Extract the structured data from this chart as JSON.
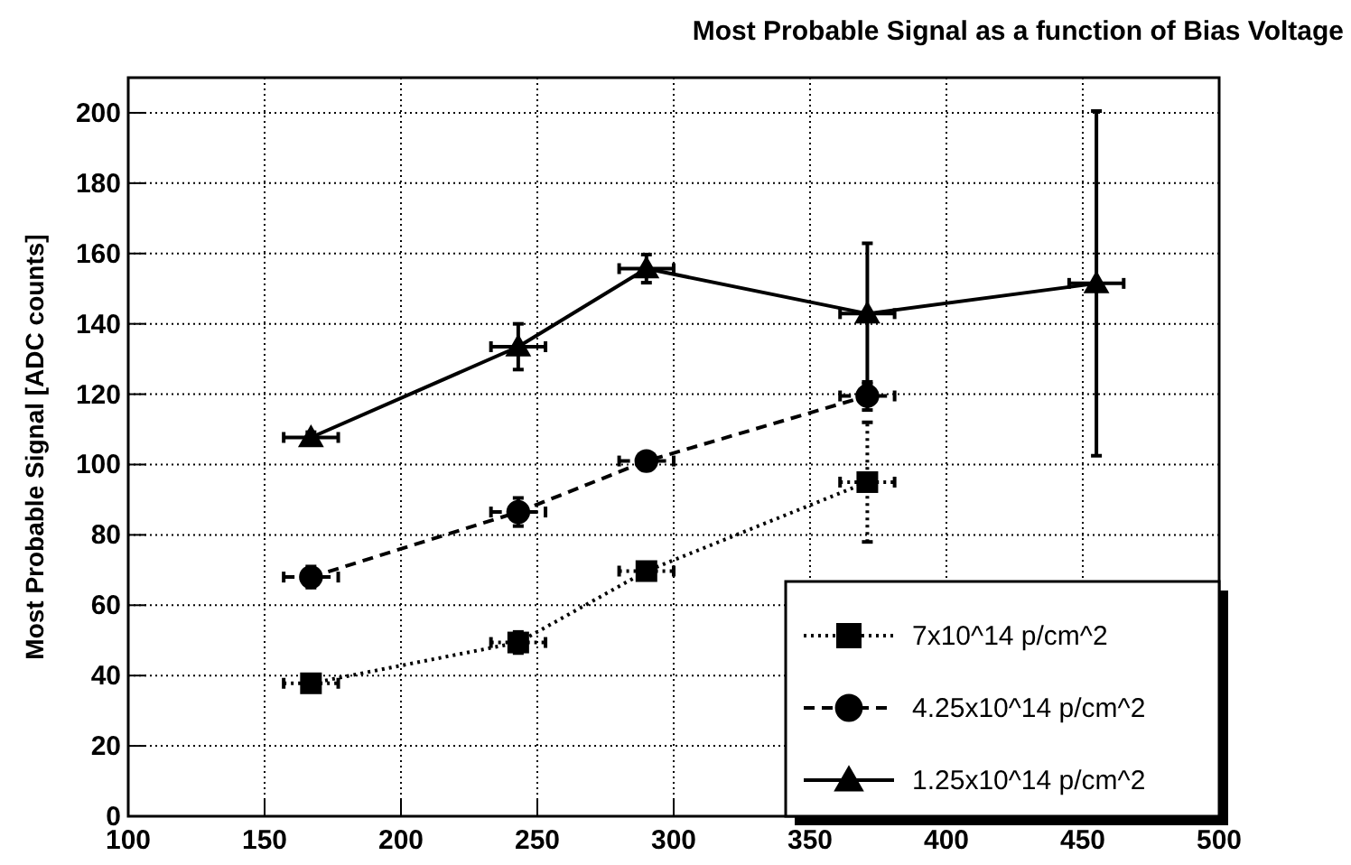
{
  "chart_data": {
    "type": "line",
    "title": "Most Probable Signal as a function of Bias Voltage",
    "ylabel": "Most Probable Signal [ADC counts]",
    "xlim": [
      100,
      500
    ],
    "xticks": [
      100,
      150,
      200,
      250,
      300,
      350,
      400,
      450,
      500
    ],
    "ylim": [
      0,
      210
    ],
    "yticks": [
      0,
      20,
      40,
      60,
      80,
      100,
      120,
      140,
      160,
      180,
      200
    ],
    "grid": true,
    "legend": "bottom right",
    "series": [
      {
        "name": "7x10^14 p/cm^2",
        "color": "#000000",
        "marker": "square",
        "line_style": "dotted",
        "x": [
          167,
          243,
          290,
          371
        ],
        "values": [
          37.8,
          49.4,
          69.7,
          95
        ],
        "errors": [
          2,
          3,
          2,
          17
        ],
        "xerrors": [
          10,
          10,
          10,
          10
        ]
      },
      {
        "name": "4.25x10^14 p/cm^2",
        "color": "#000000",
        "marker": "circle",
        "line_style": "dashed",
        "x": [
          167,
          243,
          290,
          371
        ],
        "values": [
          68,
          86.5,
          101,
          119.5
        ],
        "errors": [
          3,
          4,
          2,
          4
        ],
        "xerrors": [
          10,
          10,
          10,
          10
        ]
      },
      {
        "name": "1.25x10^14 p/cm^2",
        "color": "#000000",
        "marker": "triangle",
        "line_style": "solid",
        "x": [
          167,
          243,
          290,
          371,
          455
        ],
        "values": [
          107.7,
          133.5,
          155.7,
          142.9,
          151.5
        ],
        "errors": [
          1.5,
          6.5,
          4,
          20,
          49
        ],
        "xerrors": [
          10,
          10,
          10,
          10,
          10
        ]
      }
    ]
  }
}
